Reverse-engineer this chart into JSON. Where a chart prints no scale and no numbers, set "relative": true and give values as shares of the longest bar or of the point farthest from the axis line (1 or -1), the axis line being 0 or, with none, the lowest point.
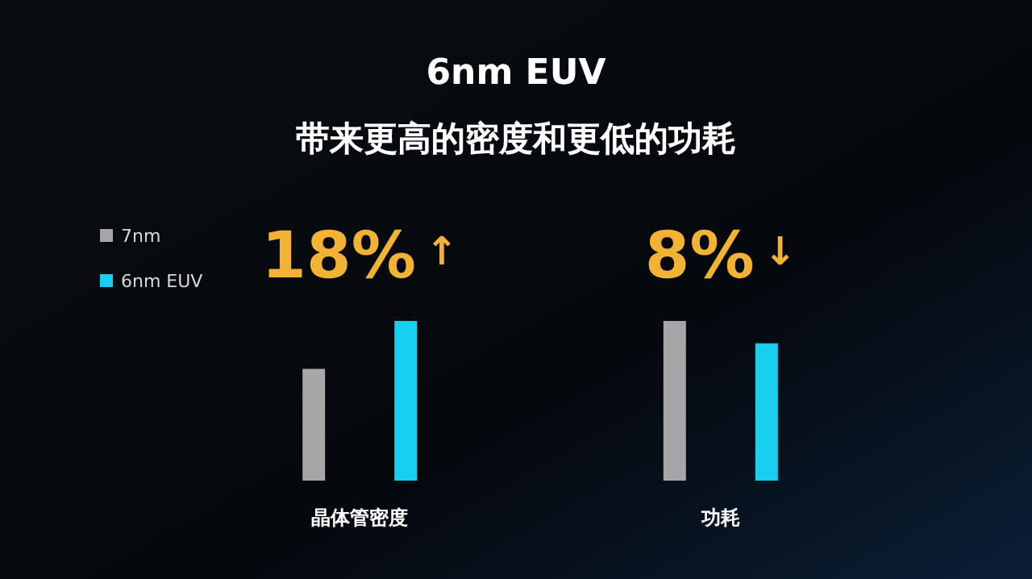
{
  "chart_data": {
    "type": "bar",
    "title": "6nm EUV",
    "subtitle": "带来更高的密度和更低的功耗",
    "categories": [
      "晶体管密度",
      "功耗"
    ],
    "relative": true,
    "series": [
      {
        "name": "7nm",
        "color": "#a6a6a8",
        "values": [
          0.7,
          1
        ]
      },
      {
        "name": "6nm EUV",
        "color": "#17cfef",
        "values": [
          1,
          0.86
        ]
      }
    ],
    "annotations": [
      "18%↑",
      "8%↓"
    ],
    "legend": "top left"
  }
}
